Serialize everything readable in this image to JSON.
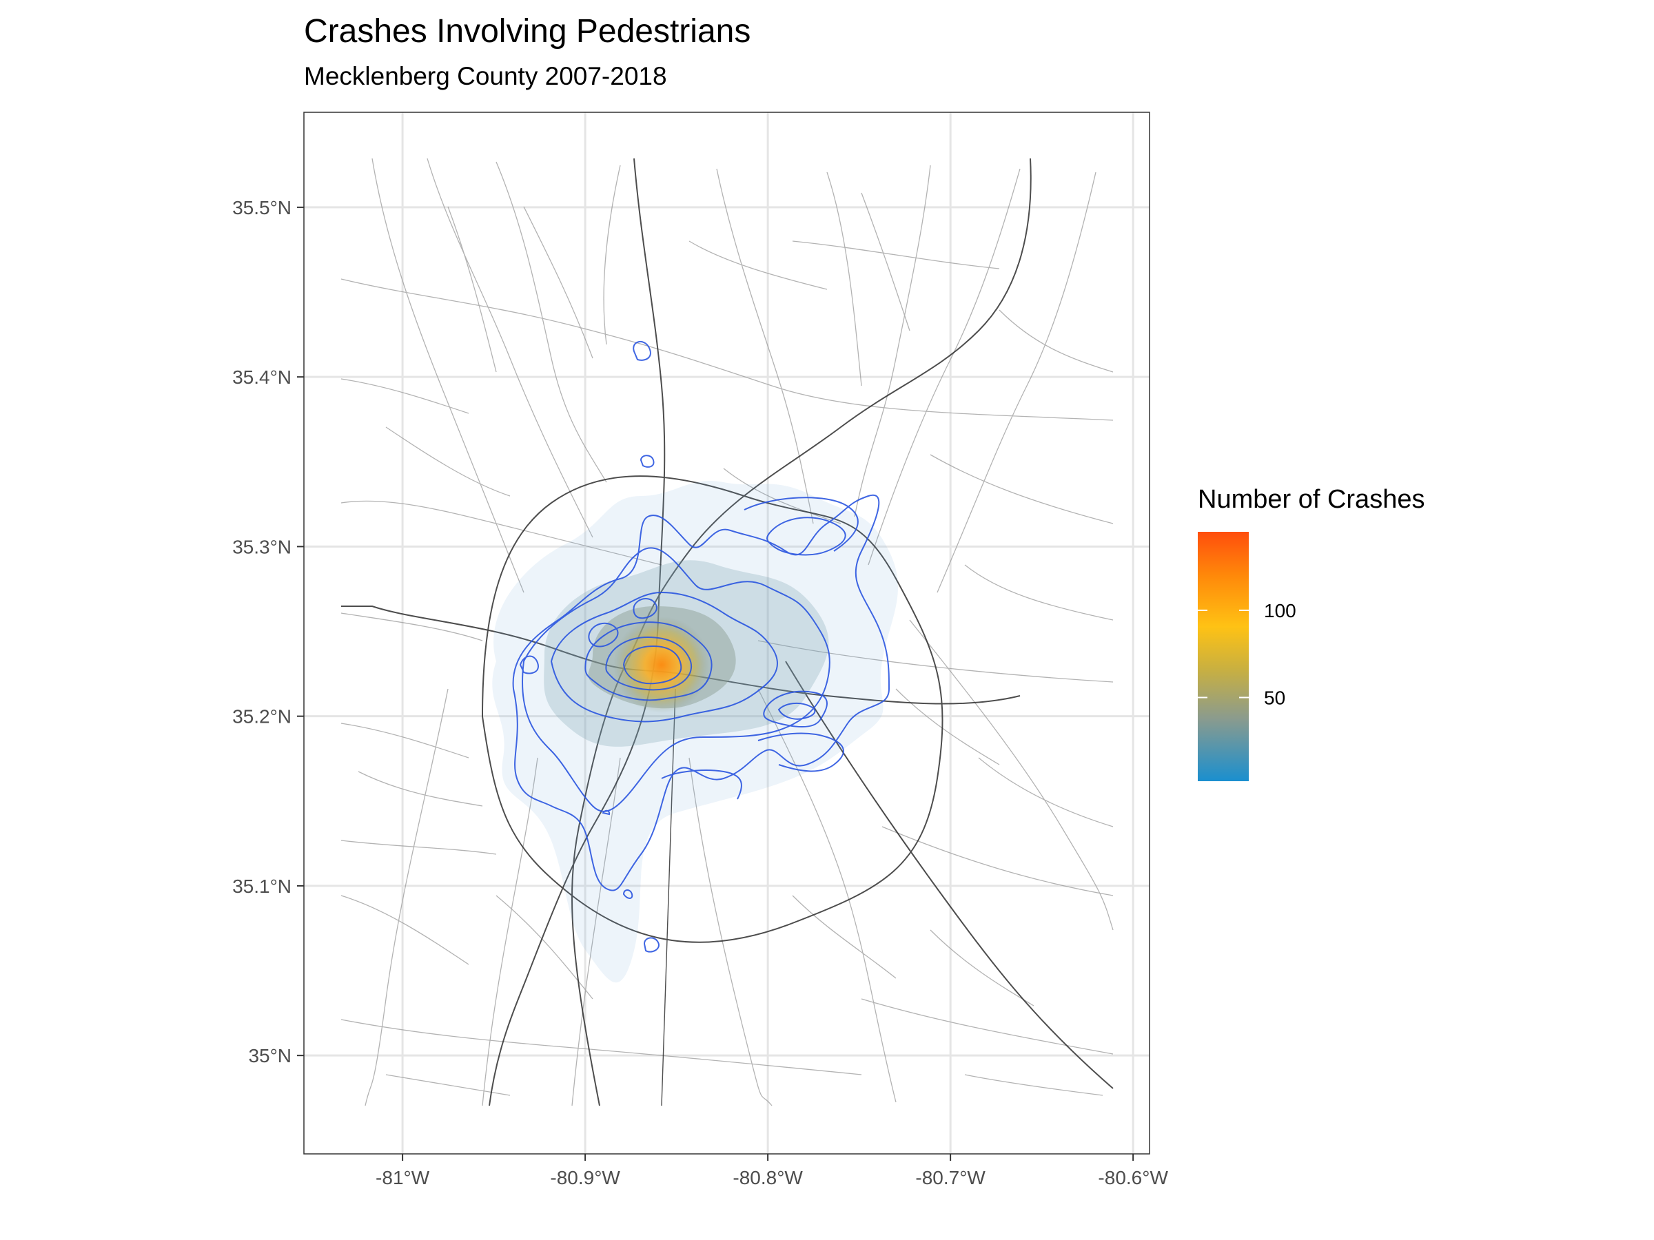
{
  "title": "Crashes Involving Pedestrians",
  "subtitle": "Mecklenberg County 2007-2018",
  "legend": {
    "title": "Number of Crashes",
    "breaks": [
      {
        "value": 50,
        "label": "50"
      },
      {
        "value": 100,
        "label": "100"
      }
    ],
    "range": [
      2,
      145
    ],
    "colors": [
      "#1a8fcf",
      "#8a9b8e",
      "#c9b040",
      "#ffc214",
      "#ff8a0a",
      "#ff4e0d"
    ]
  },
  "map": {
    "x_ticks": [
      {
        "value": -81.0,
        "label": "-81°W"
      },
      {
        "value": -80.9,
        "label": "-80.9°W"
      },
      {
        "value": -80.8,
        "label": "-80.8°W"
      },
      {
        "value": -80.7,
        "label": "-80.7°W"
      },
      {
        "value": -80.6,
        "label": "-80.6°W"
      }
    ],
    "y_ticks": [
      {
        "value": 35.0,
        "label": "35°N"
      },
      {
        "value": 35.1,
        "label": "35.1°N"
      },
      {
        "value": 35.2,
        "label": "35.2°N"
      },
      {
        "value": 35.3,
        "label": "35.3°N"
      },
      {
        "value": 35.4,
        "label": "35.4°N"
      },
      {
        "value": 35.5,
        "label": "35.5°N"
      }
    ],
    "xlim": [
      -81.054,
      -80.591
    ],
    "ylim": [
      34.942,
      35.556
    ],
    "grid": true,
    "peak": {
      "lon": -80.842,
      "lat": 35.226,
      "value": 145
    },
    "contour_color": "#2a55e0"
  }
}
